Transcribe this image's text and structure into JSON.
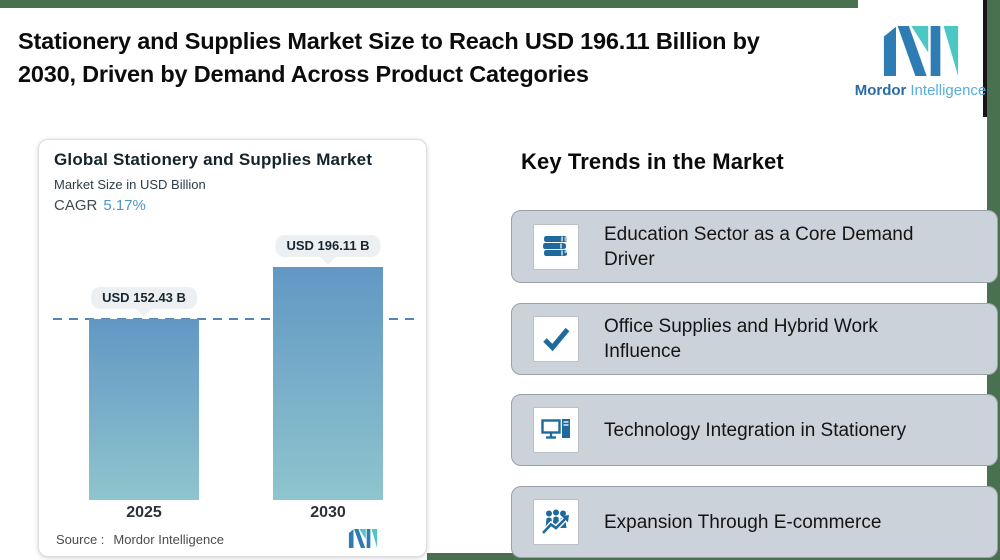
{
  "header": {
    "title": "Stationery and Supplies Market Size to Reach USD 196.11 Billion by\n2030, Driven by Demand Across Product Categories"
  },
  "brand": {
    "name_bold": "Mordor",
    "name_light": "Intelligence"
  },
  "chart_card": {
    "title": "Global Stationery and Supplies Market",
    "subtitle": "Market Size in USD Billion",
    "cagr_label": "CAGR",
    "cagr_value": "5.17%",
    "source_label": "Source :",
    "source_value": "Mordor Intelligence"
  },
  "chart_data": {
    "type": "bar",
    "title": "Global Stationery and Supplies Market",
    "ylabel": "Market Size in USD Billion",
    "categories": [
      "2025",
      "2030"
    ],
    "values": [
      152.43,
      196.11
    ],
    "value_labels": [
      "USD 152.43 B",
      "USD 196.11 B"
    ],
    "cagr_percent": 5.17,
    "ylim": [
      0,
      196.11
    ],
    "grid": false,
    "legend": "none",
    "reference_line": {
      "value": 152.43,
      "style": "dashed",
      "color": "#5587b5"
    },
    "bar_gradient": [
      "#6297c4",
      "#8fc5cd"
    ]
  },
  "trends": {
    "heading": "Key Trends in the Market",
    "items": [
      {
        "icon": "books-icon",
        "text": "Education Sector as a Core Demand\nDriver"
      },
      {
        "icon": "check-icon",
        "text": "Office Supplies and Hybrid Work\nInfluence"
      },
      {
        "icon": "computer-icon",
        "text": "Technology Integration in Stationery"
      },
      {
        "icon": "ecommerce-growth-icon",
        "text": "Expansion Through E-commerce"
      }
    ]
  },
  "colors": {
    "edge_green": "#49714f",
    "trend_card_gray": "#ccd2d9",
    "icon_blue": "#1e6a9c",
    "bar_top": "#6297c4",
    "bar_bottom": "#8fc5cd",
    "dashed_line": "#5587b5",
    "cagr_blue": "#4d97c9",
    "pill_bg": "#edf0f2",
    "logo_blue": "#2e7cb4",
    "logo_teal": "#4cc8c4"
  }
}
